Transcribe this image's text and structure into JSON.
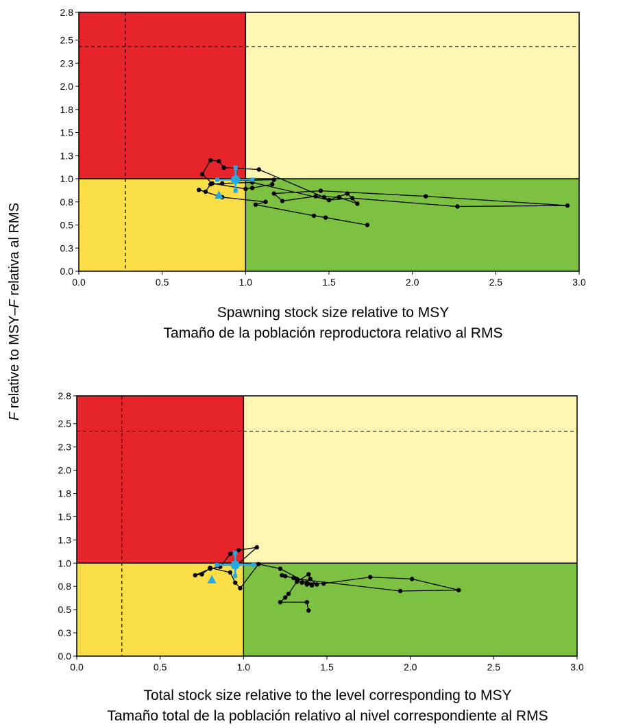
{
  "colors": {
    "red": "#e5242b",
    "light_yellow": "#fdf5b2",
    "yellow": "#f9de48",
    "green": "#7dc142",
    "trajectory": "#000000",
    "current_marker": "#29a8e0"
  },
  "y_axis_label": {
    "italic_prefix": "F",
    "text": " relative to MSY–",
    "italic_mid": "F",
    "suffix": " relativa al RMS"
  },
  "chart_data": [
    {
      "type": "scatter",
      "xlabel": [
        "Spawning stock size relative to MSY",
        "Tamaño de la población reproductora relativo al RMS"
      ],
      "xlim": [
        0,
        3
      ],
      "ylim": [
        0,
        2.8
      ],
      "xticks": [
        "0.0",
        "0.5",
        "1.0",
        "1.5",
        "2.0",
        "2.5",
        "3.0"
      ],
      "xtick_values": [
        0,
        0.5,
        1,
        1.5,
        2,
        2.5,
        3
      ],
      "yticks": [
        "0.0",
        "0.3",
        "0.5",
        "0.8",
        "1.0",
        "1.3",
        "1.5",
        "1.8",
        "2.0",
        "2.3",
        "2.5",
        "2.8"
      ],
      "ytick_values": [
        0,
        0.25,
        0.5,
        0.75,
        1,
        1.25,
        1.5,
        1.75,
        2,
        2.25,
        2.5,
        2.8
      ],
      "reference_lines": {
        "vertical_dashed": 0.28,
        "horizontal_dashed": 2.43,
        "msy_x": 1.0,
        "msy_y": 1.0
      },
      "trajectory": {
        "x": [
          1.73,
          1.48,
          1.41,
          1.06,
          1.12,
          0.86,
          0.72,
          0.76,
          0.79,
          0.86,
          1.04,
          1.5,
          1.61,
          1.67,
          1.56,
          1.42,
          1.22,
          1.17,
          1.45,
          2.08,
          2.93,
          2.27,
          1.64,
          1.5,
          1.47,
          1.08,
          0.87,
          0.84,
          0.79,
          0.74,
          0.8,
          1.0,
          1.04,
          1.16,
          1.17,
          0.95
        ],
        "y": [
          0.5,
          0.58,
          0.6,
          0.72,
          0.75,
          0.8,
          0.88,
          0.86,
          0.94,
          0.95,
          0.96,
          0.77,
          0.84,
          0.73,
          0.8,
          0.81,
          0.76,
          0.84,
          0.87,
          0.81,
          0.71,
          0.7,
          0.79,
          0.77,
          0.8,
          1.1,
          1.12,
          1.19,
          1.2,
          1.05,
          0.95,
          0.89,
          0.9,
          0.94,
          0.99,
          0.98
        ]
      },
      "first_year": {
        "x": 0.84,
        "y": 0.82
      },
      "current": {
        "x": 0.94,
        "y": 0.99,
        "x_low": 0.83,
        "x_high": 1.04,
        "y_low": 0.87,
        "y_high": 1.12
      }
    },
    {
      "type": "scatter",
      "xlabel": [
        "Total stock size relative to the level corresponding to MSY",
        "Tamaño total de la población relativo al nivel correspondiente al RMS"
      ],
      "xlim": [
        0,
        3
      ],
      "ylim": [
        0,
        2.8
      ],
      "xticks": [
        "0.0",
        "0.5",
        "1.0",
        "1.5",
        "2.0",
        "2.5",
        "3.0"
      ],
      "xtick_values": [
        0,
        0.5,
        1,
        1.5,
        2,
        2.5,
        3
      ],
      "yticks": [
        "0.0",
        "0.3",
        "0.5",
        "0.8",
        "1.0",
        "1.3",
        "1.5",
        "1.8",
        "2.0",
        "2.3",
        "2.5",
        "2.8"
      ],
      "ytick_values": [
        0,
        0.25,
        0.5,
        0.75,
        1,
        1.25,
        1.5,
        1.75,
        2,
        2.25,
        2.5,
        2.8
      ],
      "reference_lines": {
        "vertical_dashed": 0.27,
        "horizontal_dashed": 2.42,
        "msy_x": 1.0,
        "msy_y": 1.0
      },
      "trajectory": {
        "x": [
          1.39,
          1.38,
          1.22,
          1.25,
          1.27,
          1.32,
          1.39,
          1.4,
          1.44,
          1.38,
          1.48,
          1.76,
          2.01,
          2.29,
          1.94,
          1.32,
          1.23,
          1.25,
          1.3,
          1.35,
          1.38,
          1.41,
          1.22,
          1.09,
          0.98,
          0.95,
          0.92,
          0.8,
          0.75,
          0.71,
          0.8,
          0.86,
          0.92,
          0.97,
          1.08,
          0.96
        ],
        "y": [
          0.49,
          0.58,
          0.58,
          0.63,
          0.67,
          0.8,
          0.88,
          0.83,
          0.77,
          0.79,
          0.78,
          0.85,
          0.83,
          0.71,
          0.7,
          0.83,
          0.87,
          0.86,
          0.84,
          0.79,
          0.77,
          0.76,
          0.94,
          0.99,
          0.73,
          0.79,
          0.9,
          0.95,
          0.88,
          0.87,
          0.94,
          0.96,
          1.1,
          1.14,
          1.17,
          0.98
        ]
      },
      "first_year": {
        "x": 0.81,
        "y": 0.82
      },
      "current": {
        "x": 0.95,
        "y": 0.98,
        "x_low": 0.84,
        "x_high": 1.06,
        "y_low": 0.86,
        "y_high": 1.11
      }
    }
  ]
}
